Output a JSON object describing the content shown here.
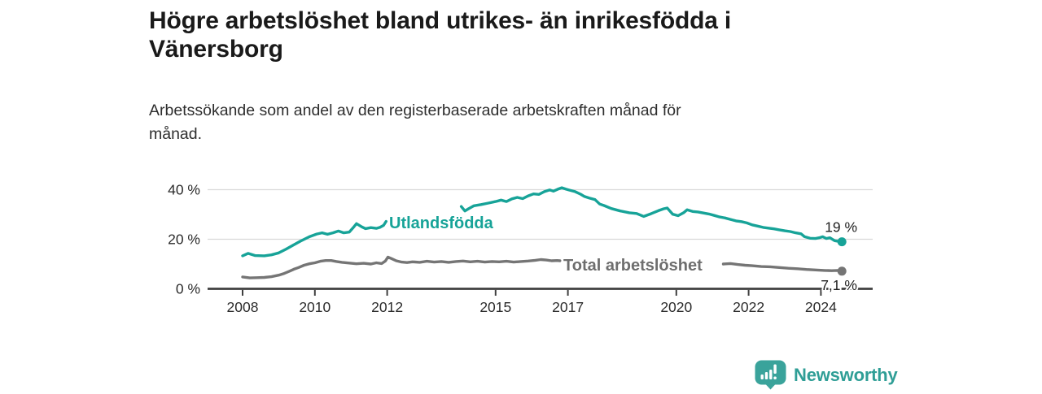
{
  "title": {
    "line1": "Högre arbetslöshet bland utrikes- än inrikesfödda i",
    "line2": "Vänersborg"
  },
  "subtitle": {
    "line1": "Arbetssökande som andel av den registerbaserade arbetskraften månad för",
    "line2": "månad."
  },
  "branding": {
    "name": "Newsworthy",
    "icon": "bar-chart-speech-bubble-icon",
    "color": "#2f9e96"
  },
  "colors": {
    "teal": "#17a398",
    "gray": "#757575",
    "gray_label": "#6e6e6e",
    "grid": "#d9d9d9",
    "axis": "#3f3f3f",
    "tick_label": "#2b2b2b",
    "value_label": "#222222",
    "background": "#ffffff"
  },
  "chart_data": {
    "type": "line",
    "unit": "%",
    "grid": true,
    "legend_position": "inline-labels",
    "x_axis": {
      "ticks": [
        2008,
        2010,
        2012,
        2015,
        2017,
        2020,
        2022,
        2024
      ],
      "range": [
        2007.0,
        2025.4
      ]
    },
    "y_axis": {
      "ticks": [
        0,
        20,
        40
      ],
      "suffix": " %",
      "range": [
        0,
        43
      ],
      "gridlines": [
        20,
        40
      ]
    },
    "series": [
      {
        "name": "Utlandsfödda",
        "color": "#17a398",
        "end_value": 19,
        "end_value_label": "19 %",
        "segments": [
          [
            [
              2008.0,
              13.3
            ],
            [
              2008.15,
              14.3
            ],
            [
              2008.35,
              13.4
            ],
            [
              2008.6,
              13.3
            ],
            [
              2008.8,
              13.7
            ],
            [
              2009.0,
              14.5
            ],
            [
              2009.2,
              16.0
            ],
            [
              2009.4,
              17.6
            ],
            [
              2009.6,
              19.2
            ],
            [
              2009.85,
              21.0
            ],
            [
              2010.05,
              22.1
            ],
            [
              2010.2,
              22.6
            ],
            [
              2010.35,
              22.0
            ],
            [
              2010.5,
              22.6
            ],
            [
              2010.65,
              23.3
            ],
            [
              2010.8,
              22.6
            ],
            [
              2010.95,
              22.9
            ],
            [
              2011.05,
              24.5
            ],
            [
              2011.15,
              26.3
            ],
            [
              2011.3,
              25.0
            ],
            [
              2011.4,
              24.3
            ],
            [
              2011.55,
              24.7
            ],
            [
              2011.7,
              24.4
            ],
            [
              2011.8,
              24.8
            ],
            [
              2011.9,
              25.6
            ],
            [
              2011.97,
              27.2
            ]
          ],
          [
            [
              2014.05,
              33.2
            ],
            [
              2014.15,
              31.4
            ],
            [
              2014.25,
              32.3
            ],
            [
              2014.4,
              33.5
            ],
            [
              2014.6,
              34.0
            ],
            [
              2014.8,
              34.6
            ],
            [
              2015.0,
              35.2
            ],
            [
              2015.15,
              35.8
            ],
            [
              2015.3,
              35.2
            ],
            [
              2015.45,
              36.3
            ],
            [
              2015.6,
              36.9
            ],
            [
              2015.75,
              36.4
            ],
            [
              2015.9,
              37.5
            ],
            [
              2016.05,
              38.3
            ],
            [
              2016.2,
              38.1
            ],
            [
              2016.35,
              39.2
            ],
            [
              2016.5,
              39.9
            ],
            [
              2016.6,
              39.4
            ],
            [
              2016.72,
              40.2
            ],
            [
              2016.83,
              40.8
            ],
            [
              2016.95,
              40.2
            ],
            [
              2017.05,
              39.8
            ],
            [
              2017.2,
              39.2
            ],
            [
              2017.35,
              38.2
            ],
            [
              2017.45,
              37.3
            ],
            [
              2017.6,
              36.6
            ],
            [
              2017.75,
              36.0
            ],
            [
              2017.88,
              34.2
            ],
            [
              2018.0,
              33.6
            ],
            [
              2018.2,
              32.4
            ],
            [
              2018.45,
              31.4
            ],
            [
              2018.7,
              30.7
            ],
            [
              2018.9,
              30.4
            ],
            [
              2019.1,
              29.2
            ],
            [
              2019.3,
              30.3
            ],
            [
              2019.5,
              31.5
            ],
            [
              2019.65,
              32.3
            ],
            [
              2019.75,
              32.6
            ],
            [
              2019.9,
              30.1
            ],
            [
              2020.05,
              29.5
            ],
            [
              2020.2,
              30.7
            ],
            [
              2020.3,
              31.9
            ],
            [
              2020.45,
              31.2
            ],
            [
              2020.6,
              31.0
            ],
            [
              2020.75,
              30.6
            ],
            [
              2020.9,
              30.2
            ],
            [
              2021.05,
              29.6
            ],
            [
              2021.2,
              29.0
            ],
            [
              2021.35,
              28.6
            ],
            [
              2021.5,
              28.0
            ],
            [
              2021.65,
              27.4
            ],
            [
              2021.8,
              27.1
            ],
            [
              2021.95,
              26.6
            ],
            [
              2022.1,
              25.8
            ],
            [
              2022.25,
              25.3
            ],
            [
              2022.4,
              24.8
            ],
            [
              2022.55,
              24.5
            ],
            [
              2022.7,
              24.2
            ],
            [
              2022.85,
              23.8
            ],
            [
              2023.0,
              23.4
            ],
            [
              2023.15,
              23.1
            ],
            [
              2023.3,
              22.6
            ],
            [
              2023.45,
              22.2
            ],
            [
              2023.55,
              21.0
            ],
            [
              2023.7,
              20.4
            ],
            [
              2023.85,
              20.3
            ],
            [
              2023.95,
              20.6
            ],
            [
              2024.05,
              21.0
            ],
            [
              2024.15,
              20.3
            ],
            [
              2024.25,
              20.6
            ],
            [
              2024.38,
              19.4
            ],
            [
              2024.5,
              19.1
            ],
            [
              2024.58,
              19.0
            ]
          ]
        ]
      },
      {
        "name": "Total arbetslöshet",
        "color": "#757575",
        "label_color": "#6e6e6e",
        "end_value": 7.1,
        "end_value_label": "7,1 %",
        "segments": [
          [
            [
              2008.0,
              4.8
            ],
            [
              2008.2,
              4.4
            ],
            [
              2008.4,
              4.5
            ],
            [
              2008.6,
              4.6
            ],
            [
              2008.8,
              4.9
            ],
            [
              2009.0,
              5.5
            ],
            [
              2009.15,
              6.2
            ],
            [
              2009.3,
              7.1
            ],
            [
              2009.42,
              7.9
            ],
            [
              2009.55,
              8.6
            ],
            [
              2009.7,
              9.5
            ],
            [
              2009.85,
              10.1
            ],
            [
              2010.0,
              10.5
            ],
            [
              2010.15,
              11.1
            ],
            [
              2010.3,
              11.4
            ],
            [
              2010.45,
              11.4
            ],
            [
              2010.6,
              11.0
            ],
            [
              2010.75,
              10.7
            ],
            [
              2010.95,
              10.4
            ],
            [
              2011.15,
              10.1
            ],
            [
              2011.35,
              10.3
            ],
            [
              2011.55,
              10.0
            ],
            [
              2011.7,
              10.5
            ],
            [
              2011.85,
              10.2
            ],
            [
              2011.95,
              11.2
            ],
            [
              2012.02,
              12.8
            ],
            [
              2012.12,
              12.2
            ],
            [
              2012.25,
              11.3
            ],
            [
              2012.4,
              10.8
            ],
            [
              2012.55,
              10.6
            ],
            [
              2012.7,
              10.9
            ],
            [
              2012.9,
              10.7
            ],
            [
              2013.1,
              11.1
            ],
            [
              2013.3,
              10.8
            ],
            [
              2013.5,
              11.0
            ],
            [
              2013.7,
              10.7
            ],
            [
              2013.9,
              11.0
            ],
            [
              2014.1,
              11.2
            ],
            [
              2014.3,
              10.9
            ],
            [
              2014.5,
              11.1
            ],
            [
              2014.7,
              10.8
            ],
            [
              2014.9,
              11.0
            ],
            [
              2015.1,
              10.9
            ],
            [
              2015.3,
              11.1
            ],
            [
              2015.5,
              10.8
            ],
            [
              2015.7,
              11.0
            ],
            [
              2015.9,
              11.2
            ],
            [
              2016.1,
              11.5
            ],
            [
              2016.25,
              11.8
            ],
            [
              2016.4,
              11.6
            ],
            [
              2016.55,
              11.3
            ],
            [
              2016.7,
              11.4
            ],
            [
              2016.78,
              11.3
            ]
          ],
          [
            [
              2021.3,
              10.0
            ],
            [
              2021.5,
              10.2
            ],
            [
              2021.7,
              9.8
            ],
            [
              2021.9,
              9.5
            ],
            [
              2022.1,
              9.3
            ],
            [
              2022.35,
              9.0
            ],
            [
              2022.6,
              8.9
            ],
            [
              2022.85,
              8.6
            ],
            [
              2023.1,
              8.3
            ],
            [
              2023.35,
              8.1
            ],
            [
              2023.6,
              7.8
            ],
            [
              2023.85,
              7.6
            ],
            [
              2024.1,
              7.4
            ],
            [
              2024.3,
              7.3
            ],
            [
              2024.45,
              7.4
            ],
            [
              2024.58,
              7.1
            ]
          ]
        ]
      }
    ]
  }
}
